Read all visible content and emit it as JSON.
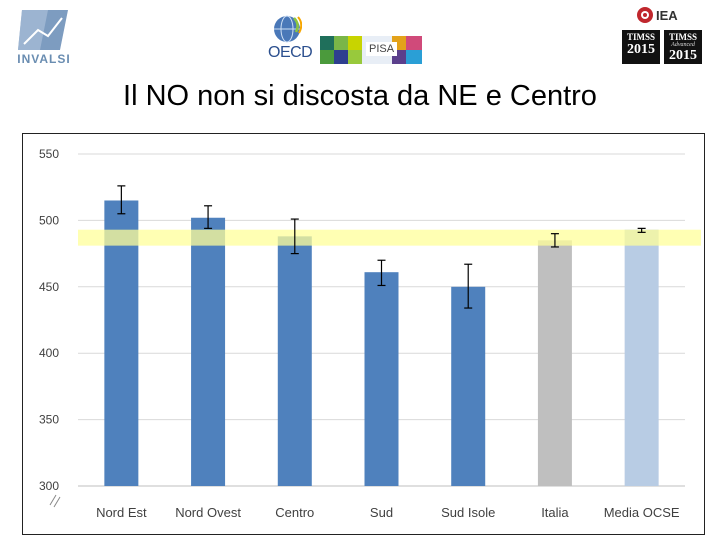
{
  "header": {
    "logo_invalsi": "INVALSI",
    "logo_oecd": "OECD",
    "logo_pisa": "PISA",
    "logo_iea": "IEA",
    "timss_badges": [
      {
        "name": "TIMSS",
        "sub": "",
        "year": "2015"
      },
      {
        "name": "TIMSS",
        "sub": "Advanced",
        "year": "2015"
      }
    ]
  },
  "slide": {
    "title": "Il NO non si discosta da NE e Centro"
  },
  "colors": {
    "bar_regions": "#4f81bd",
    "bar_italia": "#bfbfbf",
    "bar_ocse": "#b8cce4",
    "band": "#ffff99",
    "grid": "#d9d9d9",
    "error": "#000000"
  },
  "chart_data": {
    "type": "bar",
    "title": "",
    "xlabel": "",
    "ylabel": "",
    "ylim": [
      300,
      550
    ],
    "yticks": [
      300,
      350,
      400,
      450,
      500,
      550
    ],
    "grid": true,
    "categories": [
      "Nord Est",
      "Nord Ovest",
      "Centro",
      "Sud",
      "Sud Isole",
      "Italia",
      "Media OCSE"
    ],
    "values": [
      515,
      502,
      488,
      461,
      450,
      485,
      493
    ],
    "error_low": [
      505,
      494,
      475,
      451,
      434,
      480,
      491
    ],
    "error_high": [
      526,
      511,
      501,
      470,
      467,
      490,
      494
    ],
    "bar_color_keys": [
      "bar_regions",
      "bar_regions",
      "bar_regions",
      "bar_regions",
      "bar_regions",
      "bar_italia",
      "bar_ocse"
    ],
    "reference_band": {
      "low": 481,
      "high": 493
    }
  }
}
